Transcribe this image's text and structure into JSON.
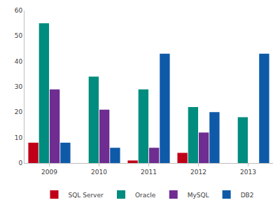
{
  "chart_data": {
    "type": "bar",
    "categories": [
      "2009",
      "2010",
      "2011",
      "2012",
      "2013"
    ],
    "series": [
      {
        "name": "SQL Server",
        "color": "#c00018",
        "values": [
          8,
          null,
          1,
          4,
          null
        ]
      },
      {
        "name": "Oracle",
        "color": "#008c7e",
        "values": [
          55,
          34,
          29,
          22,
          18
        ]
      },
      {
        "name": "MySQL",
        "color": "#6f2c91",
        "values": [
          29,
          21,
          6,
          12,
          null
        ]
      },
      {
        "name": "DB2",
        "color": "#0f5aa8",
        "values": [
          8,
          6,
          43,
          20,
          43
        ]
      }
    ],
    "ylim": [
      0,
      60
    ],
    "yticks": [
      0,
      10,
      20,
      30,
      40,
      50,
      60
    ],
    "grid": false,
    "legend": "bottom"
  }
}
